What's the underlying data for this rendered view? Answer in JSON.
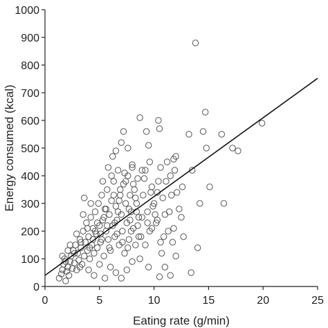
{
  "chart_data": {
    "type": "scatter",
    "title": "",
    "xlabel": "Eating rate (g/min)",
    "ylabel": "Energy consumed (kcal)",
    "xlim": [
      0,
      25
    ],
    "ylim": [
      0,
      1000
    ],
    "xticks": [
      0,
      5,
      10,
      15,
      20,
      25
    ],
    "yticks": [
      0,
      100,
      200,
      300,
      400,
      500,
      600,
      700,
      800,
      900,
      1000
    ],
    "grid": false,
    "legend": "none",
    "regression_line": {
      "x": [
        0,
        25
      ],
      "y": [
        40,
        752
      ]
    },
    "series": [
      {
        "points": [
          [
            1.3,
            30
          ],
          [
            1.5,
            45
          ],
          [
            1.6,
            60
          ],
          [
            1.7,
            80
          ],
          [
            1.8,
            100
          ],
          [
            1.9,
            20
          ],
          [
            2.0,
            55
          ],
          [
            2.1,
            70
          ],
          [
            2.2,
            40
          ],
          [
            2.3,
            90
          ],
          [
            2.4,
            110
          ],
          [
            2.5,
            65
          ],
          [
            2.6,
            130
          ],
          [
            2.7,
            85
          ],
          [
            2.8,
            150
          ],
          [
            2.9,
            60
          ],
          [
            3.0,
            120
          ],
          [
            3.1,
            95
          ],
          [
            3.2,
            170
          ],
          [
            3.3,
            140
          ],
          [
            3.4,
            80
          ],
          [
            3.5,
            200
          ],
          [
            3.6,
            110
          ],
          [
            3.7,
            160
          ],
          [
            3.8,
            230
          ],
          [
            3.9,
            130
          ],
          [
            4.0,
            180
          ],
          [
            4.1,
            100
          ],
          [
            4.2,
            250
          ],
          [
            4.3,
            150
          ],
          [
            4.4,
            210
          ],
          [
            4.5,
            120
          ],
          [
            4.6,
            270
          ],
          [
            4.7,
            190
          ],
          [
            4.8,
            140
          ],
          [
            4.9,
            300
          ],
          [
            5.0,
            220
          ],
          [
            5.1,
            160
          ],
          [
            5.2,
            330
          ],
          [
            5.3,
            240
          ],
          [
            5.4,
            110
          ],
          [
            5.5,
            280
          ],
          [
            5.6,
            200
          ],
          [
            5.7,
            350
          ],
          [
            5.8,
            170
          ],
          [
            5.9,
            260
          ],
          [
            6.0,
            130
          ],
          [
            6.1,
            310
          ],
          [
            6.2,
            220
          ],
          [
            6.3,
            380
          ],
          [
            6.4,
            180
          ],
          [
            6.5,
            290
          ],
          [
            6.6,
            240
          ],
          [
            6.7,
            420
          ],
          [
            6.8,
            150
          ],
          [
            6.9,
            330
          ],
          [
            7.0,
            260
          ],
          [
            7.1,
            200
          ],
          [
            7.2,
            370
          ],
          [
            7.3,
            120
          ],
          [
            7.4,
            300
          ],
          [
            7.5,
            230
          ],
          [
            7.6,
            400
          ],
          [
            7.7,
            170
          ],
          [
            7.8,
            330
          ],
          [
            7.9,
            270
          ],
          [
            8.0,
            440
          ],
          [
            8.1,
            210
          ],
          [
            8.2,
            350
          ],
          [
            8.3,
            150
          ],
          [
            8.4,
            300
          ],
          [
            8.5,
            390
          ],
          [
            8.6,
            250
          ],
          [
            8.8,
            180
          ],
          [
            9.0,
            330
          ],
          [
            9.2,
            420
          ],
          [
            9.4,
            270
          ],
          [
            9.6,
            200
          ],
          [
            9.8,
            360
          ],
          [
            10.0,
            300
          ],
          [
            10.2,
            230
          ],
          [
            10.4,
            380
          ],
          [
            10.6,
            160
          ],
          [
            10.8,
            320
          ],
          [
            11.0,
            260
          ],
          [
            11.3,
            200
          ],
          [
            11.6,
            330
          ],
          [
            11.9,
            420
          ],
          [
            12.3,
            280
          ],
          [
            12.7,
            180
          ],
          [
            3.5,
            260
          ],
          [
            4.2,
            300
          ],
          [
            5.3,
            380
          ],
          [
            5.8,
            430
          ],
          [
            6.2,
            470
          ],
          [
            6.5,
            490
          ],
          [
            7.0,
            520
          ],
          [
            7.2,
            560
          ],
          [
            7.6,
            500
          ],
          [
            8.0,
            430
          ],
          [
            8.7,
            610
          ],
          [
            9.3,
            560
          ],
          [
            9.5,
            510
          ],
          [
            10.4,
            600
          ],
          [
            10.5,
            570
          ],
          [
            11.2,
            450
          ],
          [
            11.5,
            400
          ],
          [
            12.0,
            470
          ],
          [
            12.6,
            360
          ],
          [
            13.2,
            550
          ],
          [
            13.5,
            420
          ],
          [
            14.2,
            300
          ],
          [
            14.5,
            560
          ],
          [
            14.7,
            630
          ],
          [
            14.8,
            500
          ],
          [
            15.1,
            360
          ],
          [
            16.2,
            550
          ],
          [
            16.4,
            300
          ],
          [
            17.2,
            500
          ],
          [
            17.7,
            490
          ],
          [
            19.9,
            590
          ],
          [
            13.8,
            880
          ],
          [
            14.0,
            140
          ],
          [
            13.4,
            50
          ],
          [
            12.0,
            110
          ],
          [
            11.5,
            40
          ],
          [
            11.0,
            70
          ],
          [
            10.5,
            35
          ],
          [
            9.5,
            70
          ],
          [
            8.7,
            100
          ],
          [
            8.0,
            90
          ],
          [
            7.5,
            60
          ],
          [
            7.0,
            30
          ],
          [
            6.5,
            50
          ],
          [
            6.0,
            70
          ],
          [
            5.5,
            30
          ],
          [
            5.0,
            80
          ],
          [
            4.5,
            40
          ],
          [
            4.0,
            60
          ],
          [
            3.2,
            70
          ],
          [
            2.7,
            120
          ],
          [
            2.3,
            150
          ],
          [
            3.6,
            320
          ],
          [
            4.8,
            230
          ],
          [
            5.6,
            280
          ],
          [
            6.8,
            310
          ],
          [
            7.9,
            200
          ],
          [
            8.9,
            250
          ],
          [
            9.9,
            290
          ],
          [
            10.9,
            180
          ],
          [
            11.8,
            210
          ],
          [
            12.5,
            250
          ],
          [
            6.1,
            400
          ],
          [
            6.9,
            350
          ],
          [
            7.4,
            380
          ],
          [
            7.8,
            240
          ],
          [
            8.4,
            270
          ],
          [
            9.1,
            390
          ],
          [
            9.7,
            340
          ],
          [
            10.1,
            260
          ],
          [
            5.1,
            190
          ],
          [
            4.4,
            170
          ],
          [
            3.9,
            210
          ],
          [
            3.3,
            160
          ],
          [
            2.9,
            190
          ],
          [
            2.1,
            130
          ],
          [
            1.9,
            90
          ],
          [
            1.6,
            110
          ],
          [
            5.9,
            140
          ],
          [
            6.4,
            230
          ],
          [
            7.1,
            160
          ],
          [
            7.7,
            280
          ],
          [
            8.3,
            320
          ],
          [
            8.6,
            180
          ],
          [
            9.2,
            150
          ],
          [
            9.8,
            210
          ],
          [
            10.3,
            240
          ],
          [
            10.7,
            120
          ],
          [
            11.4,
            270
          ],
          [
            12.1,
            340
          ],
          [
            5.4,
            250
          ],
          [
            6.3,
            330
          ],
          [
            6.7,
            270
          ],
          [
            7.3,
            410
          ],
          [
            8.1,
            370
          ],
          [
            8.9,
            420
          ],
          [
            9.6,
            450
          ],
          [
            10.6,
            430
          ],
          [
            11.1,
            380
          ],
          [
            11.8,
            460
          ],
          [
            4.1,
            140
          ],
          [
            4.6,
            200
          ],
          [
            5.2,
            170
          ],
          [
            5.7,
            220
          ],
          [
            6.6,
            190
          ],
          [
            7.6,
            140
          ],
          [
            8.5,
            220
          ],
          [
            9.4,
            230
          ],
          [
            10.3,
            340
          ],
          [
            11.7,
            160
          ]
        ]
      }
    ]
  }
}
